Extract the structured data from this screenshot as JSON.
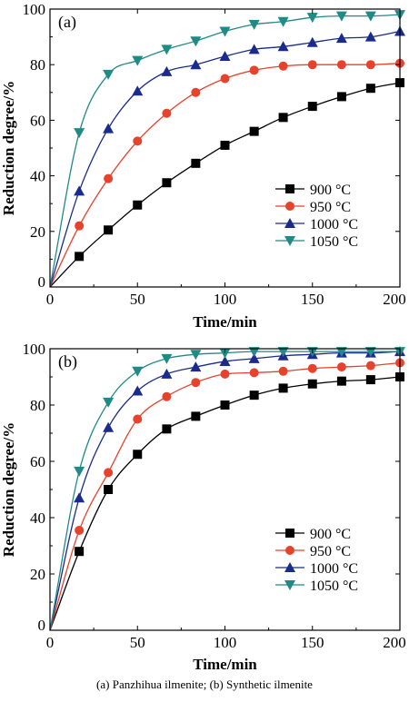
{
  "caption": "(a)  Panzhihua  ilmenite; (b) Synthetic ilmenite",
  "chart_data": [
    {
      "type": "line",
      "panel_label": "(a)",
      "xlabel": "Time/min",
      "ylabel": "Reduction degree/%",
      "xlim": [
        0,
        200
      ],
      "ylim": [
        0,
        100
      ],
      "xticks": [
        0,
        50,
        100,
        150,
        200
      ],
      "yticks": [
        0,
        20,
        40,
        60,
        80,
        100
      ],
      "legend_position": "lower-right",
      "x": [
        0,
        16.7,
        33.3,
        50,
        66.7,
        83.3,
        100,
        116.7,
        133.3,
        150,
        166.7,
        183.3,
        200
      ],
      "series": [
        {
          "name": "900 °C",
          "color": "#000000",
          "marker": "square",
          "values": [
            0,
            11,
            20.5,
            29.5,
            37.5,
            44.5,
            51,
            56,
            61,
            65,
            68.5,
            71.5,
            73.5
          ]
        },
        {
          "name": "950 °C",
          "color": "#e8412c",
          "marker": "circle",
          "values": [
            0,
            22,
            39,
            52.5,
            62.5,
            70,
            75,
            78,
            79.5,
            80,
            80,
            80,
            80.5
          ]
        },
        {
          "name": "1000 °C",
          "color": "#1a2b8c",
          "marker": "triangle-up",
          "values": [
            0,
            34.5,
            57,
            70.5,
            77.5,
            80,
            83,
            85.5,
            86.5,
            88,
            89.5,
            90,
            92
          ]
        },
        {
          "name": "1050 °C",
          "color": "#1f8a86",
          "marker": "triangle-down",
          "values": [
            0,
            55.5,
            76.5,
            81.5,
            85.5,
            88.5,
            92,
            94.5,
            95.5,
            97,
            97.5,
            97.5,
            98
          ]
        }
      ]
    },
    {
      "type": "line",
      "panel_label": "(b)",
      "xlabel": "Time/min",
      "ylabel": "Reduction degree/%",
      "xlim": [
        0,
        200
      ],
      "ylim": [
        0,
        100
      ],
      "xticks": [
        0,
        50,
        100,
        150,
        200
      ],
      "yticks": [
        0,
        20,
        40,
        60,
        80,
        100
      ],
      "legend_position": "lower-right",
      "x": [
        0,
        16.7,
        33.3,
        50,
        66.7,
        83.3,
        100,
        116.7,
        133.3,
        150,
        166.7,
        183.3,
        200
      ],
      "series": [
        {
          "name": "900 °C",
          "color": "#000000",
          "marker": "square",
          "values": [
            0,
            28,
            50,
            62.5,
            71.5,
            76,
            80,
            83.5,
            86,
            87.5,
            88.5,
            89,
            90
          ]
        },
        {
          "name": "950 °C",
          "color": "#e8412c",
          "marker": "circle",
          "values": [
            0,
            35.5,
            56,
            75,
            83,
            88,
            91,
            91.5,
            92,
            93,
            93.5,
            94,
            95
          ]
        },
        {
          "name": "1000 °C",
          "color": "#1a2b8c",
          "marker": "triangle-up",
          "values": [
            0,
            47,
            72,
            85,
            91,
            93.5,
            95.5,
            96.5,
            97.5,
            98,
            98.5,
            98.5,
            99
          ]
        },
        {
          "name": "1050 °C",
          "color": "#1f8a86",
          "marker": "triangle-down",
          "values": [
            0,
            56.5,
            81,
            92,
            96.5,
            98,
            98.5,
            99,
            99,
            99,
            99,
            99,
            99
          ]
        }
      ]
    }
  ]
}
